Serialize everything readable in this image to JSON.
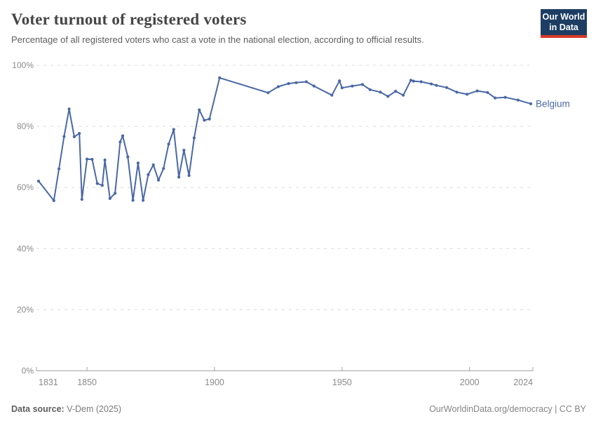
{
  "colors": {
    "line": "#4a68a5",
    "grid": "#dcdcdc",
    "axis": "#a3a3a3",
    "tick_label": "#8b8b8b",
    "title_text": "#454545",
    "subtitle_text": "#5e5e5e",
    "footer_text": "#787878",
    "logo_bg": "#1d3d63",
    "logo_accent": "#d93a2b"
  },
  "header": {
    "logo": {
      "line1": "Our World",
      "line2": "in Data"
    }
  },
  "chart_data": {
    "type": "line",
    "title": "Voter turnout of registered voters",
    "subtitle": "Percentage of all registered voters who cast a vote in the national election, according to official results.",
    "xlabel": "",
    "ylabel": "",
    "xlim": [
      1831,
      2024
    ],
    "ylim": [
      0,
      100
    ],
    "x_ticks": [
      1831,
      1850,
      1900,
      1950,
      2000,
      2024
    ],
    "y_ticks": [
      0,
      20,
      40,
      60,
      80,
      100
    ],
    "y_tick_suffix": "%",
    "grid": "horizontal-dashed",
    "legend_position": "end-of-line-label",
    "series": [
      {
        "name": "Belgium",
        "points": [
          [
            1831,
            62.1
          ],
          [
            1837,
            55.7
          ],
          [
            1839,
            66.1
          ],
          [
            1841,
            76.7
          ],
          [
            1843,
            85.7
          ],
          [
            1845,
            76.6
          ],
          [
            1847,
            77.7
          ],
          [
            1848,
            56.1
          ],
          [
            1850,
            69.3
          ],
          [
            1852,
            69.2
          ],
          [
            1854,
            61.3
          ],
          [
            1856,
            60.7
          ],
          [
            1857,
            69.0
          ],
          [
            1859,
            56.4
          ],
          [
            1861,
            58.1
          ],
          [
            1863,
            74.9
          ],
          [
            1864,
            76.9
          ],
          [
            1866,
            70.0
          ],
          [
            1868,
            55.8
          ],
          [
            1870,
            68.0
          ],
          [
            1872,
            55.8
          ],
          [
            1874,
            64.2
          ],
          [
            1876,
            67.4
          ],
          [
            1878,
            62.4
          ],
          [
            1880,
            66.2
          ],
          [
            1882,
            74.2
          ],
          [
            1884,
            79.0
          ],
          [
            1886,
            63.4
          ],
          [
            1888,
            72.2
          ],
          [
            1890,
            63.9
          ],
          [
            1892,
            76.2
          ],
          [
            1894,
            85.4
          ],
          [
            1896,
            82.0
          ],
          [
            1898,
            82.4
          ],
          [
            1902,
            95.9
          ],
          [
            1921,
            91.0
          ],
          [
            1925,
            93.0
          ],
          [
            1929,
            94.0
          ],
          [
            1932,
            94.3
          ],
          [
            1936,
            94.6
          ],
          [
            1939,
            93.2
          ],
          [
            1946,
            90.2
          ],
          [
            1949,
            94.9
          ],
          [
            1950,
            92.6
          ],
          [
            1954,
            93.2
          ],
          [
            1958,
            93.7
          ],
          [
            1961,
            92.0
          ],
          [
            1965,
            91.2
          ],
          [
            1968,
            89.8
          ],
          [
            1971,
            91.5
          ],
          [
            1974,
            90.2
          ],
          [
            1977,
            95.1
          ],
          [
            1978,
            94.8
          ],
          [
            1981,
            94.6
          ],
          [
            1985,
            93.9
          ],
          [
            1987,
            93.4
          ],
          [
            1991,
            92.7
          ],
          [
            1995,
            91.2
          ],
          [
            1999,
            90.5
          ],
          [
            2003,
            91.6
          ],
          [
            2007,
            91.1
          ],
          [
            2010,
            89.3
          ],
          [
            2014,
            89.5
          ],
          [
            2019,
            88.6
          ],
          [
            2024,
            87.4
          ]
        ]
      }
    ]
  },
  "footer": {
    "source_label": "Data source:",
    "source_value": "V-Dem (2025)",
    "right_text": "OurWorldinData.org/democracy | CC BY"
  }
}
